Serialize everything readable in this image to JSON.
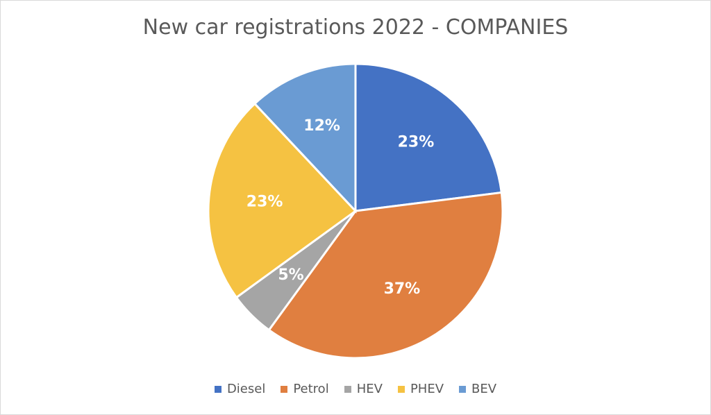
{
  "chart_data": {
    "type": "pie",
    "title": "New car registrations 2022 - COMPANIES",
    "categories": [
      "Diesel",
      "Petrol",
      "HEV",
      "PHEV",
      "BEV"
    ],
    "values": [
      23,
      37,
      5,
      23,
      12
    ],
    "labels": [
      "23%",
      "37%",
      "5%",
      "23%",
      "12%"
    ],
    "colors": [
      "#4472C4",
      "#E07F40",
      "#A5A5A5",
      "#F5C242",
      "#6A9BD3"
    ],
    "legend_position": "bottom",
    "start_angle": "top",
    "direction": "clockwise"
  }
}
